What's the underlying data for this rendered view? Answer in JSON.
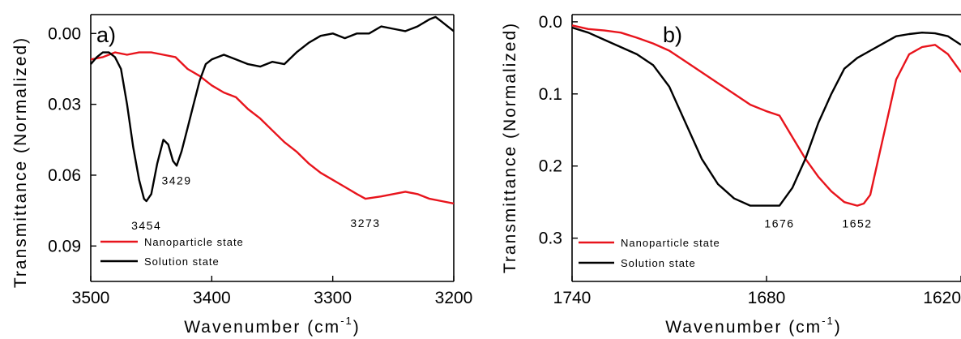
{
  "chart_data": [
    {
      "type": "line",
      "panel_label": "a)",
      "xlabel": "Wavenumber (cm",
      "xlabel_sup": "-1",
      "xlabel_close": ")",
      "ylabel": "Transmittance (Normalized)",
      "xlim": [
        3500,
        3200
      ],
      "ylim": [
        -0.008,
        0.105
      ],
      "y_inverted": true,
      "xticks": [
        3500,
        3400,
        3300,
        3200
      ],
      "xtick_labels": [
        "3500",
        "3400",
        "3300",
        "3200"
      ],
      "yticks": [
        0.0,
        0.03,
        0.06,
        0.09
      ],
      "ytick_labels": [
        "0.00",
        "0.03",
        "0.06",
        "0.09"
      ],
      "legend_position": "bottom-left",
      "colors": {
        "nanoparticle": "#e8141c",
        "solution": "#000000"
      },
      "series": [
        {
          "name": "Nanoparticle state",
          "x": [
            3500,
            3490,
            3480,
            3470,
            3460,
            3450,
            3440,
            3430,
            3420,
            3410,
            3400,
            3390,
            3380,
            3370,
            3360,
            3350,
            3340,
            3330,
            3320,
            3310,
            3300,
            3290,
            3280,
            3273,
            3260,
            3250,
            3240,
            3230,
            3220,
            3210,
            3200
          ],
          "y": [
            0.011,
            0.01,
            0.008,
            0.009,
            0.008,
            0.008,
            0.009,
            0.01,
            0.015,
            0.018,
            0.022,
            0.025,
            0.027,
            0.032,
            0.036,
            0.041,
            0.046,
            0.05,
            0.055,
            0.059,
            0.062,
            0.065,
            0.068,
            0.07,
            0.069,
            0.068,
            0.067,
            0.068,
            0.07,
            0.071,
            0.072
          ]
        },
        {
          "name": "Solution state",
          "x": [
            3500,
            3495,
            3490,
            3485,
            3480,
            3475,
            3470,
            3465,
            3460,
            3456,
            3454,
            3450,
            3445,
            3440,
            3436,
            3432,
            3429,
            3425,
            3420,
            3415,
            3410,
            3405,
            3400,
            3395,
            3390,
            3380,
            3370,
            3360,
            3350,
            3340,
            3330,
            3320,
            3310,
            3300,
            3290,
            3280,
            3270,
            3260,
            3250,
            3240,
            3230,
            3220,
            3215,
            3210,
            3205,
            3200
          ],
          "y": [
            0.013,
            0.01,
            0.008,
            0.008,
            0.01,
            0.015,
            0.03,
            0.048,
            0.062,
            0.07,
            0.071,
            0.068,
            0.055,
            0.045,
            0.047,
            0.054,
            0.056,
            0.05,
            0.04,
            0.03,
            0.02,
            0.013,
            0.011,
            0.01,
            0.009,
            0.011,
            0.013,
            0.014,
            0.012,
            0.013,
            0.008,
            0.004,
            0.001,
            0.0,
            0.002,
            0.0,
            0.0,
            -0.003,
            -0.002,
            -0.001,
            -0.003,
            -0.006,
            -0.007,
            -0.005,
            -0.003,
            -0.001
          ]
        }
      ],
      "annotations": [
        {
          "text": "3454",
          "x": 3454,
          "y": 0.083
        },
        {
          "text": "3429",
          "x": 3429,
          "y": 0.064
        },
        {
          "text": "3273",
          "x": 3273,
          "y": 0.082
        }
      ]
    },
    {
      "type": "line",
      "panel_label": "b)",
      "xlabel": "Wavenumber (cm",
      "xlabel_sup": "-1",
      "xlabel_close": ")",
      "ylabel": "Transmittance (Normalized)",
      "xlim": [
        1740,
        1620
      ],
      "ylim": [
        -0.01,
        0.36
      ],
      "y_inverted": true,
      "xticks": [
        1740,
        1680,
        1620
      ],
      "xtick_labels": [
        "1740",
        "1680",
        "1620"
      ],
      "yticks": [
        0.0,
        0.1,
        0.2,
        0.3
      ],
      "ytick_labels": [
        "0.0",
        "0.1",
        "0.2",
        "0.3"
      ],
      "legend_position": "bottom-left",
      "colors": {
        "nanoparticle": "#e8141c",
        "solution": "#000000"
      },
      "series": [
        {
          "name": "Nanoparticle state",
          "x": [
            1740,
            1735,
            1730,
            1725,
            1720,
            1715,
            1710,
            1705,
            1700,
            1695,
            1690,
            1685,
            1680,
            1676,
            1672,
            1668,
            1664,
            1660,
            1656,
            1652,
            1650,
            1648,
            1645,
            1642,
            1640,
            1636,
            1632,
            1628,
            1624,
            1620
          ],
          "y": [
            0.005,
            0.01,
            0.012,
            0.015,
            0.022,
            0.03,
            0.04,
            0.055,
            0.07,
            0.085,
            0.1,
            0.115,
            0.124,
            0.13,
            0.16,
            0.19,
            0.215,
            0.235,
            0.25,
            0.255,
            0.252,
            0.24,
            0.18,
            0.12,
            0.08,
            0.045,
            0.035,
            0.032,
            0.045,
            0.07
          ]
        },
        {
          "name": "Solution state",
          "x": [
            1740,
            1735,
            1730,
            1725,
            1720,
            1715,
            1710,
            1705,
            1700,
            1695,
            1690,
            1685,
            1680,
            1676,
            1672,
            1668,
            1664,
            1660,
            1656,
            1652,
            1648,
            1644,
            1640,
            1636,
            1632,
            1628,
            1624,
            1620
          ],
          "y": [
            0.008,
            0.015,
            0.025,
            0.035,
            0.045,
            0.06,
            0.09,
            0.14,
            0.19,
            0.225,
            0.245,
            0.255,
            0.255,
            0.255,
            0.23,
            0.19,
            0.14,
            0.1,
            0.065,
            0.05,
            0.04,
            0.03,
            0.02,
            0.017,
            0.015,
            0.016,
            0.02,
            0.032
          ]
        }
      ],
      "annotations": [
        {
          "text": "1676",
          "x": 1676,
          "y": 0.285
        },
        {
          "text": "1652",
          "x": 1652,
          "y": 0.285
        }
      ]
    }
  ]
}
